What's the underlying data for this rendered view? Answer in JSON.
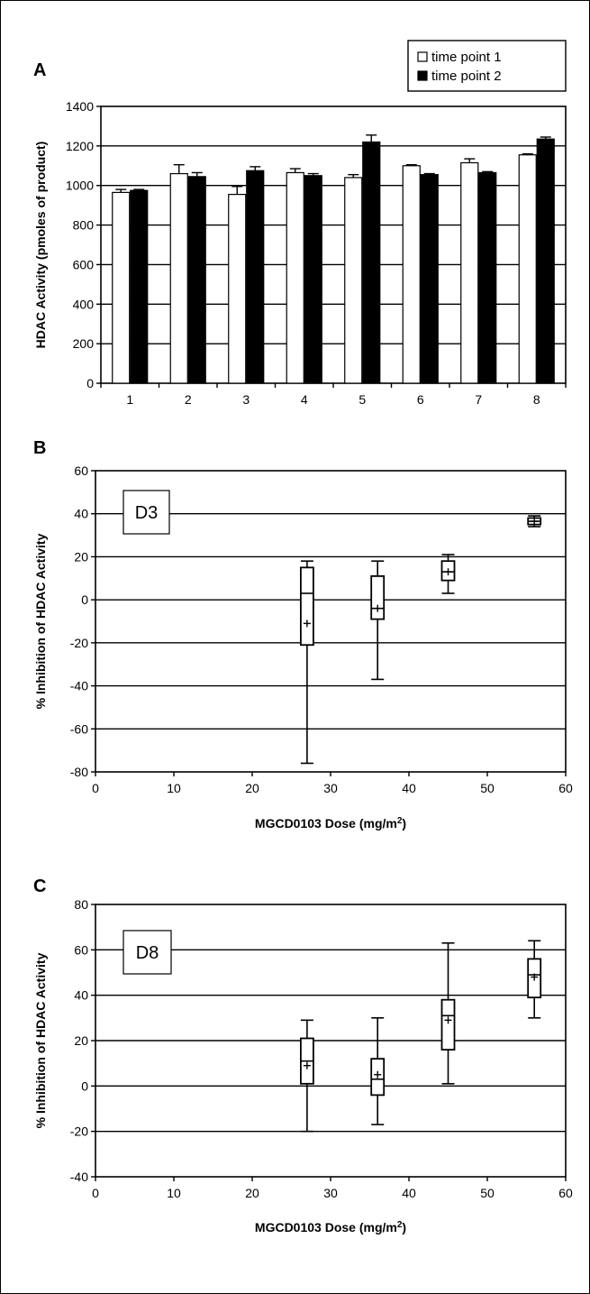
{
  "chart_data": [
    {
      "panel": "A",
      "type": "bar",
      "ylabel": "HDAC Activity  (pmoles of product)",
      "ylim": [
        0,
        1400
      ],
      "yticks": [
        0,
        200,
        400,
        600,
        800,
        1000,
        1200,
        1400
      ],
      "categories": [
        "1",
        "2",
        "3",
        "4",
        "5",
        "6",
        "7",
        "8"
      ],
      "grid": true,
      "legend_position": "top-right",
      "series": [
        {
          "name": "time point 1",
          "color": "#ffffff",
          "values": [
            965,
            1060,
            955,
            1065,
            1040,
            1100,
            1115,
            1155
          ],
          "errors": [
            15,
            45,
            40,
            20,
            15,
            5,
            20,
            5
          ]
        },
        {
          "name": "time point 2",
          "color": "#000000",
          "values": [
            975,
            1045,
            1075,
            1050,
            1220,
            1055,
            1065,
            1235
          ],
          "errors": [
            5,
            20,
            20,
            10,
            35,
            5,
            5,
            10
          ]
        }
      ]
    },
    {
      "panel": "B",
      "type": "box",
      "label": "D3",
      "xlabel": "MGCD0103 Dose (mg/m",
      "xlabel_sup": "2",
      "xlabel_end": ")",
      "ylabel": "% Inhibition of HDAC Activity",
      "xlim": [
        0,
        60
      ],
      "ylim": [
        -80,
        60
      ],
      "xticks": [
        0,
        10,
        20,
        30,
        40,
        50,
        60
      ],
      "yticks": [
        -80,
        -60,
        -40,
        -20,
        0,
        20,
        40,
        60
      ],
      "grid": true,
      "boxes": [
        {
          "x": 27,
          "min": -76,
          "q1": -21,
          "median": 3,
          "q3": 15,
          "max": 18,
          "mean": -11
        },
        {
          "x": 36,
          "min": -37,
          "q1": -9,
          "median": -4,
          "q3": 11,
          "max": 18,
          "mean": -4
        },
        {
          "x": 45,
          "min": 3,
          "q1": 9,
          "median": 13,
          "q3": 18,
          "max": 21,
          "mean": 13
        },
        {
          "x": 56,
          "min": 34,
          "q1": 35,
          "median": 36.5,
          "q3": 38,
          "max": 39,
          "mean": 36.5
        }
      ]
    },
    {
      "panel": "C",
      "type": "box",
      "label": "D8",
      "xlabel": "MGCD0103 Dose (mg/m",
      "xlabel_sup": "2",
      "xlabel_end": ")",
      "ylabel": "% Inhibition of HDAC Activity",
      "xlim": [
        0,
        60
      ],
      "ylim": [
        -40,
        80
      ],
      "xticks": [
        0,
        10,
        20,
        30,
        40,
        50,
        60
      ],
      "yticks": [
        -40,
        -20,
        0,
        20,
        40,
        60,
        80
      ],
      "grid": true,
      "boxes": [
        {
          "x": 27,
          "min": -20,
          "q1": 1,
          "median": 11,
          "q3": 21,
          "max": 29,
          "mean": 9
        },
        {
          "x": 36,
          "min": -17,
          "q1": -4,
          "median": 3,
          "q3": 12,
          "max": 30,
          "mean": 5
        },
        {
          "x": 45,
          "min": 1,
          "q1": 16,
          "median": 31,
          "q3": 38,
          "max": 63,
          "mean": 29
        },
        {
          "x": 56,
          "min": 30,
          "q1": 39,
          "median": 49,
          "q3": 56,
          "max": 64,
          "mean": 48
        }
      ]
    }
  ]
}
